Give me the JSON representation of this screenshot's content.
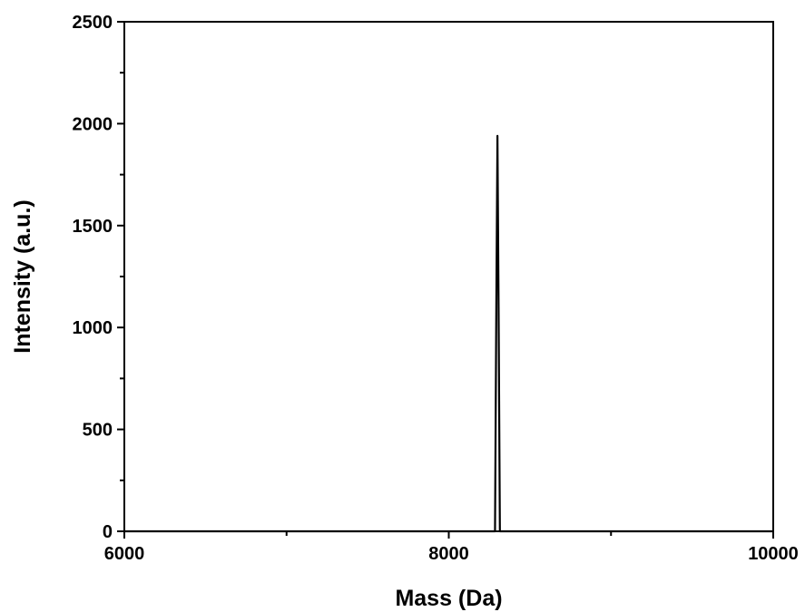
{
  "chart_data": {
    "type": "line",
    "title": "",
    "xlabel": "Mass (Da)",
    "ylabel": "Intensity (a.u.)",
    "xlim": [
      6000,
      10000
    ],
    "ylim": [
      0,
      2500
    ],
    "x_ticks": [
      "6000",
      "8000",
      "10000"
    ],
    "y_ticks": [
      "0",
      "500",
      "1000",
      "1500",
      "2000",
      "2500"
    ],
    "grid": false,
    "legend": "none",
    "series": [
      {
        "color": "#000000",
        "x": [
          6000,
          8270,
          8285,
          8293,
          8300,
          8307,
          8315,
          8330,
          10000
        ],
        "y": [
          0,
          0,
          0,
          1100,
          1940,
          1100,
          0,
          0,
          0
        ]
      }
    ]
  }
}
